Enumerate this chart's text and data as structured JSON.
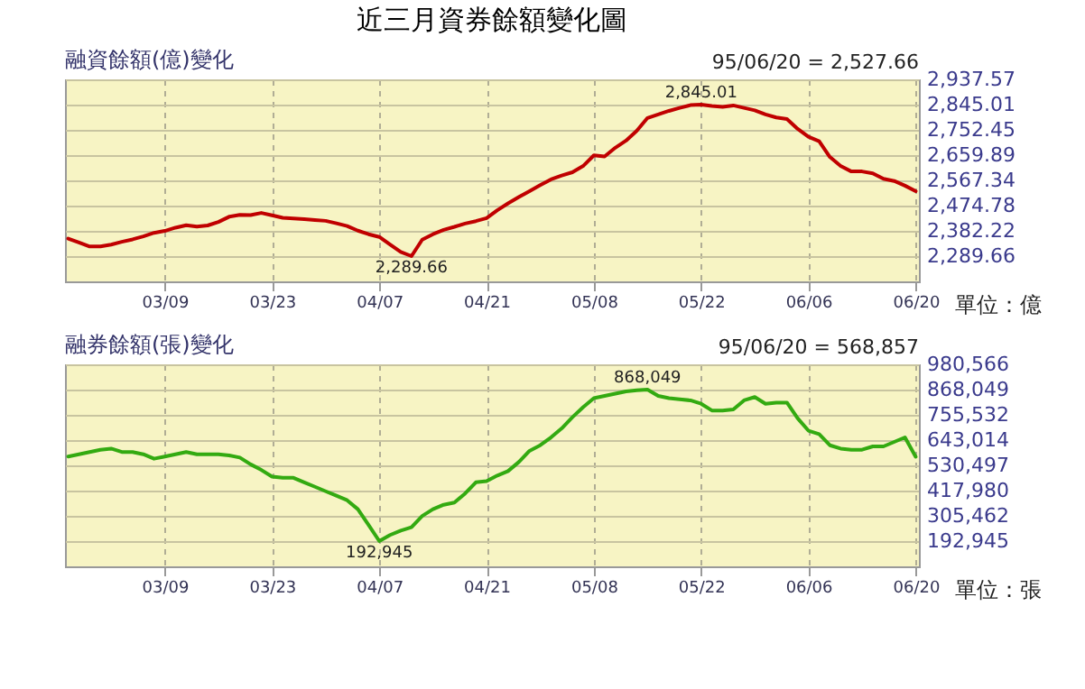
{
  "chart_data": [
    {
      "type": "line",
      "title": "近三月資券餘額變化圖",
      "subtitle": "融資餘額(億)變化",
      "categories": [
        null,
        null,
        null,
        null,
        null,
        null,
        null,
        null,
        null,
        "03/09",
        null,
        null,
        null,
        null,
        null,
        null,
        null,
        null,
        null,
        "03/23",
        null,
        null,
        null,
        null,
        null,
        null,
        null,
        null,
        null,
        "04/07",
        null,
        null,
        null,
        null,
        null,
        null,
        null,
        null,
        null,
        "04/21",
        null,
        null,
        null,
        null,
        null,
        null,
        null,
        null,
        null,
        "05/08",
        null,
        null,
        null,
        null,
        null,
        null,
        null,
        null,
        null,
        "05/22",
        null,
        null,
        null,
        null,
        null,
        null,
        null,
        null,
        null,
        "06/06",
        null,
        null,
        null,
        null,
        null,
        null,
        null,
        null,
        null,
        "06/20"
      ],
      "series": [
        {
          "color": "#c00000",
          "values": [
            2354,
            2340,
            2325,
            2325,
            2332,
            2342,
            2351,
            2362,
            2375,
            2382,
            2394,
            2403,
            2398,
            2402,
            2415,
            2434,
            2441,
            2440,
            2448,
            2439,
            2430,
            2428,
            2425,
            2422,
            2419,
            2410,
            2400,
            2383,
            2370,
            2360,
            2332,
            2305,
            2289.66,
            2350,
            2370,
            2386,
            2397,
            2409,
            2418,
            2429,
            2458,
            2483,
            2506,
            2528,
            2550,
            2571,
            2585,
            2597,
            2620,
            2659,
            2655,
            2687,
            2713,
            2749,
            2796,
            2809,
            2822,
            2833,
            2843,
            2845.01,
            2840,
            2837,
            2842,
            2833,
            2824,
            2809,
            2798,
            2792,
            2756,
            2727,
            2711,
            2653,
            2620,
            2600,
            2600,
            2593,
            2573,
            2565,
            2548,
            2527.66
          ]
        }
      ],
      "ylim": [
        2197.1,
        2937.57
      ],
      "yticks": [
        {
          "value": 2289.66,
          "label": "2,289.66"
        },
        {
          "value": 2382.22,
          "label": "2,382.22"
        },
        {
          "value": 2474.78,
          "label": "2,474.78"
        },
        {
          "value": 2567.34,
          "label": "2,567.34"
        },
        {
          "value": 2659.89,
          "label": "2,659.89"
        },
        {
          "value": 2752.45,
          "label": "2,752.45"
        },
        {
          "value": 2845.01,
          "label": "2,845.01"
        },
        {
          "value": 2937.57,
          "label": "2,937.57"
        }
      ],
      "grid": true,
      "annotations": [
        "95/06/20 = 2,527.66",
        "單位：億",
        {
          "text": "2,845.01",
          "x": "05/22",
          "y": 2845.01
        },
        {
          "text": "2,289.66",
          "y": 2289.66
        }
      ]
    },
    {
      "type": "line",
      "title": "融券餘額(張)變化",
      "categories": [
        null,
        null,
        null,
        null,
        null,
        null,
        null,
        null,
        null,
        "03/09",
        null,
        null,
        null,
        null,
        null,
        null,
        null,
        null,
        null,
        "03/23",
        null,
        null,
        null,
        null,
        null,
        null,
        null,
        null,
        null,
        "04/07",
        null,
        null,
        null,
        null,
        null,
        null,
        null,
        null,
        null,
        "04/21",
        null,
        null,
        null,
        null,
        null,
        null,
        null,
        null,
        null,
        "05/08",
        null,
        null,
        null,
        null,
        null,
        null,
        null,
        null,
        null,
        "05/22",
        null,
        null,
        null,
        null,
        null,
        null,
        null,
        null,
        null,
        "06/06",
        null,
        null,
        null,
        null,
        null,
        null,
        null,
        null,
        null,
        "06/20"
      ],
      "series": [
        {
          "color": "#33aa11",
          "values": [
            570000,
            580000,
            590000,
            600000,
            605000,
            590000,
            590000,
            580000,
            560000,
            570000,
            580000,
            590000,
            580000,
            580000,
            580000,
            575000,
            565000,
            535000,
            510000,
            480000,
            475000,
            475000,
            455000,
            435000,
            415000,
            395000,
            375000,
            335000,
            265000,
            192945,
            220000,
            240000,
            255000,
            305000,
            335000,
            355000,
            365000,
            405000,
            455000,
            460000,
            485000,
            505000,
            545000,
            595000,
            620000,
            655000,
            695000,
            745000,
            790000,
            830000,
            840000,
            850000,
            860000,
            865000,
            868049,
            840000,
            830000,
            825000,
            820000,
            805000,
            775000,
            775000,
            780000,
            820000,
            835000,
            805000,
            810000,
            810000,
            740000,
            685000,
            670000,
            620000,
            605000,
            600000,
            600000,
            615000,
            615000,
            635000,
            655000,
            568857
          ]
        }
      ],
      "ylim": [
        80428,
        980566
      ],
      "yticks": [
        {
          "value": 192945,
          "label": "192,945"
        },
        {
          "value": 305462,
          "label": "305,462"
        },
        {
          "value": 417980,
          "label": "417,980"
        },
        {
          "value": 530497,
          "label": "530,497"
        },
        {
          "value": 643014,
          "label": "643,014"
        },
        {
          "value": 755532,
          "label": "755,532"
        },
        {
          "value": 868049,
          "label": "868,049"
        },
        {
          "value": 980566,
          "label": "980,566"
        }
      ],
      "grid": true,
      "annotations": [
        "95/06/20 = 568,857",
        "單位：張",
        {
          "text": "868,049",
          "y": 868049
        },
        {
          "text": "192,945",
          "x": "04/07",
          "y": 192945
        }
      ]
    }
  ]
}
